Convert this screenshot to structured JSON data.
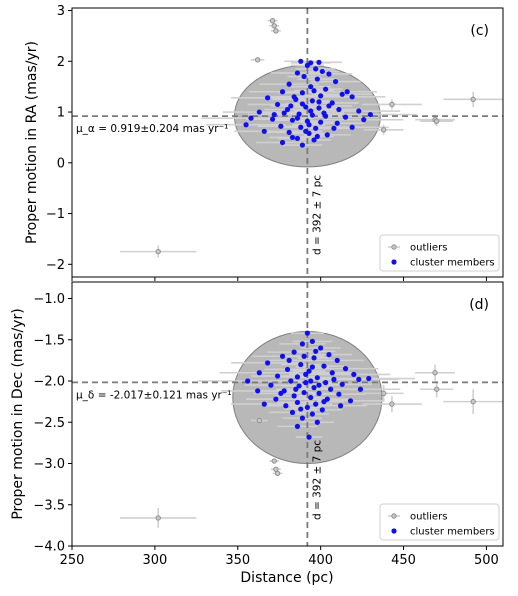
{
  "figure": {
    "xlabel": "Distance (pc)",
    "x_ticks": [
      250,
      300,
      350,
      400,
      450,
      500
    ],
    "xlim": [
      250,
      510
    ]
  },
  "legend": {
    "outliers_label": "outliers",
    "members_label": "cluster members"
  },
  "colors": {
    "members": "#1010ee",
    "outliers": "#909090",
    "ellipse": "#9a9a9a",
    "errorbar": "#d0d0d0",
    "dashed": "#7a7a7a"
  },
  "chart_data": [
    {
      "type": "scatter",
      "panel_label": "(c)",
      "ylabel": "Proper motion in RA (mas/yr)",
      "ylim": [
        -2.25,
        3.05
      ],
      "y_ticks": [
        -2,
        -1,
        0,
        1,
        2,
        3
      ],
      "mean_text": "μ_α = 0.919±0.204 mas yr⁻¹",
      "mean_value": 0.919,
      "distance_text": "d = 392 ± 7 pc",
      "distance_value": 392,
      "ellipse": {
        "cx": 392,
        "cy": 0.919,
        "rx": 44,
        "ry": 1.0
      },
      "outliers": [
        {
          "x": 302,
          "y": -1.75,
          "xerr": 23,
          "yerr": 0.12
        },
        {
          "x": 362,
          "y": 2.03,
          "xerr": 4,
          "yerr": 0
        },
        {
          "x": 371,
          "y": 2.8,
          "xerr": 3,
          "yerr": 0
        },
        {
          "x": 372,
          "y": 2.7,
          "xerr": 3,
          "yerr": 0
        },
        {
          "x": 373,
          "y": 2.6,
          "xerr": 3,
          "yerr": 0
        },
        {
          "x": 443,
          "y": 1.15,
          "xerr": 18,
          "yerr": 0.1
        },
        {
          "x": 469,
          "y": 0.85,
          "xerr": 12,
          "yerr": 0.1
        },
        {
          "x": 470,
          "y": 0.82,
          "xerr": 10,
          "yerr": 0.1
        },
        {
          "x": 492,
          "y": 1.25,
          "xerr": 18,
          "yerr": 0.15
        },
        {
          "x": 438,
          "y": 0.65,
          "xerr": 12,
          "yerr": 0.1
        }
      ],
      "members": [
        {
          "x": 388,
          "y": 2.0,
          "xerr": 10
        },
        {
          "x": 394,
          "y": 1.97,
          "xerr": 12
        },
        {
          "x": 399,
          "y": 1.98,
          "xerr": 14
        },
        {
          "x": 392,
          "y": 1.92,
          "xerr": 10
        },
        {
          "x": 397,
          "y": 1.85,
          "xerr": 12
        },
        {
          "x": 401,
          "y": 1.8,
          "xerr": 10
        },
        {
          "x": 386,
          "y": 1.77,
          "xerr": 16
        },
        {
          "x": 405,
          "y": 1.75,
          "xerr": 14
        },
        {
          "x": 390,
          "y": 1.7,
          "xerr": 10
        },
        {
          "x": 398,
          "y": 1.65,
          "xerr": 12
        },
        {
          "x": 409,
          "y": 1.6,
          "xerr": 15
        },
        {
          "x": 381,
          "y": 1.55,
          "xerr": 18
        },
        {
          "x": 394,
          "y": 1.5,
          "xerr": 12
        },
        {
          "x": 403,
          "y": 1.45,
          "xerr": 10
        },
        {
          "x": 377,
          "y": 1.4,
          "xerr": 20
        },
        {
          "x": 389,
          "y": 1.38,
          "xerr": 14
        },
        {
          "x": 400,
          "y": 1.32,
          "xerr": 12
        },
        {
          "x": 413,
          "y": 1.35,
          "xerr": 18
        },
        {
          "x": 419,
          "y": 1.3,
          "xerr": 20
        },
        {
          "x": 368,
          "y": 1.28,
          "xerr": 22
        },
        {
          "x": 385,
          "y": 1.25,
          "xerr": 14
        },
        {
          "x": 395,
          "y": 1.22,
          "xerr": 10
        },
        {
          "x": 407,
          "y": 1.18,
          "xerr": 16
        },
        {
          "x": 374,
          "y": 1.15,
          "xerr": 18
        },
        {
          "x": 382,
          "y": 1.12,
          "xerr": 12
        },
        {
          "x": 391,
          "y": 1.1,
          "xerr": 10
        },
        {
          "x": 399,
          "y": 1.08,
          "xerr": 12
        },
        {
          "x": 411,
          "y": 1.05,
          "xerr": 14
        },
        {
          "x": 423,
          "y": 1.02,
          "xerr": 25
        },
        {
          "x": 363,
          "y": 1.0,
          "xerr": 22
        },
        {
          "x": 378,
          "y": 0.98,
          "xerr": 14
        },
        {
          "x": 387,
          "y": 0.96,
          "xerr": 10
        },
        {
          "x": 395,
          "y": 0.94,
          "xerr": 12
        },
        {
          "x": 403,
          "y": 0.92,
          "xerr": 12
        },
        {
          "x": 415,
          "y": 0.9,
          "xerr": 20
        },
        {
          "x": 430,
          "y": 0.95,
          "xerr": 28
        },
        {
          "x": 358,
          "y": 0.88,
          "xerr": 30
        },
        {
          "x": 371,
          "y": 0.86,
          "xerr": 16
        },
        {
          "x": 383,
          "y": 0.84,
          "xerr": 12
        },
        {
          "x": 392,
          "y": 0.82,
          "xerr": 10
        },
        {
          "x": 400,
          "y": 0.8,
          "xerr": 12
        },
        {
          "x": 410,
          "y": 0.78,
          "xerr": 16
        },
        {
          "x": 355,
          "y": 0.75,
          "xerr": 24
        },
        {
          "x": 376,
          "y": 0.72,
          "xerr": 14
        },
        {
          "x": 388,
          "y": 0.7,
          "xerr": 12
        },
        {
          "x": 397,
          "y": 0.68,
          "xerr": 10
        },
        {
          "x": 419,
          "y": 0.7,
          "xerr": 22
        },
        {
          "x": 366,
          "y": 0.62,
          "xerr": 18
        },
        {
          "x": 381,
          "y": 0.6,
          "xerr": 14
        },
        {
          "x": 393,
          "y": 0.58,
          "xerr": 10
        },
        {
          "x": 404,
          "y": 0.55,
          "xerr": 14
        },
        {
          "x": 386,
          "y": 0.48,
          "xerr": 12
        },
        {
          "x": 396,
          "y": 0.45,
          "xerr": 10
        },
        {
          "x": 377,
          "y": 0.4,
          "xerr": 16
        },
        {
          "x": 389,
          "y": 0.35,
          "xerr": 12
        },
        {
          "x": 383,
          "y": 0.5,
          "xerr": 14
        },
        {
          "x": 391,
          "y": 0.62,
          "xerr": 10
        },
        {
          "x": 399,
          "y": 1.2,
          "xerr": 10
        },
        {
          "x": 396,
          "y": 1.42,
          "xerr": 12
        },
        {
          "x": 405,
          "y": 1.12,
          "xerr": 14
        },
        {
          "x": 380,
          "y": 1.05,
          "xerr": 14
        },
        {
          "x": 386,
          "y": 0.88,
          "xerr": 10
        },
        {
          "x": 402,
          "y": 0.98,
          "xerr": 12
        },
        {
          "x": 394,
          "y": 1.02,
          "xerr": 10
        },
        {
          "x": 389,
          "y": 1.16,
          "xerr": 10
        },
        {
          "x": 393,
          "y": 0.75,
          "xerr": 10
        },
        {
          "x": 408,
          "y": 0.68,
          "xerr": 12
        },
        {
          "x": 372,
          "y": 0.95,
          "xerr": 16
        },
        {
          "x": 416,
          "y": 1.4,
          "xerr": 18
        },
        {
          "x": 426,
          "y": 0.85,
          "xerr": 24
        },
        {
          "x": 384,
          "y": 1.3,
          "xerr": 14
        },
        {
          "x": 398,
          "y": 0.52,
          "xerr": 10
        }
      ]
    },
    {
      "type": "scatter",
      "panel_label": "(d)",
      "ylabel": "Proper motion in Dec (mas/yr)",
      "ylim": [
        -4.0,
        -0.8
      ],
      "y_ticks": [
        -4.0,
        -3.5,
        -3.0,
        -2.5,
        -2.0,
        -1.5,
        -1.0
      ],
      "mean_text": "μ_δ = -2.017±0.121 mas yr⁻¹",
      "mean_value": -2.017,
      "distance_text": "d = 392 ± 7 pc",
      "distance_value": 392,
      "ellipse": {
        "cx": 392,
        "cy": -2.2,
        "rx": 45,
        "ry": 0.8
      },
      "outliers": [
        {
          "x": 302,
          "y": -3.66,
          "xerr": 23,
          "yerr": 0.12
        },
        {
          "x": 363,
          "y": -2.48,
          "xerr": 5,
          "yerr": 0
        },
        {
          "x": 372,
          "y": -2.97,
          "xerr": 3,
          "yerr": 0
        },
        {
          "x": 373,
          "y": -3.07,
          "xerr": 3,
          "yerr": 0
        },
        {
          "x": 374,
          "y": -3.12,
          "xerr": 3,
          "yerr": 0
        },
        {
          "x": 443,
          "y": -2.28,
          "xerr": 18,
          "yerr": 0.1
        },
        {
          "x": 469,
          "y": -1.9,
          "xerr": 12,
          "yerr": 0.1
        },
        {
          "x": 470,
          "y": -2.1,
          "xerr": 10,
          "yerr": 0.1
        },
        {
          "x": 492,
          "y": -2.25,
          "xerr": 18,
          "yerr": 0.15
        },
        {
          "x": 438,
          "y": -2.15,
          "xerr": 12,
          "yerr": 0.1
        }
      ],
      "members": [
        {
          "x": 392,
          "y": -1.42,
          "xerr": 10
        },
        {
          "x": 395,
          "y": -1.52,
          "xerr": 12
        },
        {
          "x": 389,
          "y": -1.55,
          "xerr": 14
        },
        {
          "x": 400,
          "y": -1.6,
          "xerr": 12
        },
        {
          "x": 384,
          "y": -1.65,
          "xerr": 16
        },
        {
          "x": 405,
          "y": -1.68,
          "xerr": 14
        },
        {
          "x": 377,
          "y": -1.7,
          "xerr": 18
        },
        {
          "x": 396,
          "y": -1.72,
          "xerr": 10
        },
        {
          "x": 410,
          "y": -1.75,
          "xerr": 16
        },
        {
          "x": 368,
          "y": -1.78,
          "xerr": 22
        },
        {
          "x": 388,
          "y": -1.8,
          "xerr": 12
        },
        {
          "x": 402,
          "y": -1.82,
          "xerr": 12
        },
        {
          "x": 415,
          "y": -1.85,
          "xerr": 20
        },
        {
          "x": 380,
          "y": -1.86,
          "xerr": 14
        },
        {
          "x": 393,
          "y": -1.88,
          "xerr": 10
        },
        {
          "x": 363,
          "y": -1.9,
          "xerr": 24
        },
        {
          "x": 420,
          "y": -1.92,
          "xerr": 22
        },
        {
          "x": 374,
          "y": -1.94,
          "xerr": 16
        },
        {
          "x": 386,
          "y": -1.95,
          "xerr": 12
        },
        {
          "x": 398,
          "y": -1.96,
          "xerr": 10
        },
        {
          "x": 408,
          "y": -1.98,
          "xerr": 14
        },
        {
          "x": 429,
          "y": -1.97,
          "xerr": 28
        },
        {
          "x": 356,
          "y": -2.0,
          "xerr": 30
        },
        {
          "x": 382,
          "y": -2.0,
          "xerr": 12
        },
        {
          "x": 391,
          "y": -2.02,
          "xerr": 10
        },
        {
          "x": 403,
          "y": -2.02,
          "xerr": 12
        },
        {
          "x": 413,
          "y": -2.04,
          "xerr": 18
        },
        {
          "x": 370,
          "y": -2.05,
          "xerr": 16
        },
        {
          "x": 387,
          "y": -2.06,
          "xerr": 10
        },
        {
          "x": 396,
          "y": -2.08,
          "xerr": 10
        },
        {
          "x": 406,
          "y": -2.1,
          "xerr": 14
        },
        {
          "x": 424,
          "y": -2.1,
          "xerr": 24
        },
        {
          "x": 362,
          "y": -2.12,
          "xerr": 22
        },
        {
          "x": 378,
          "y": -2.12,
          "xerr": 14
        },
        {
          "x": 390,
          "y": -2.14,
          "xerr": 10
        },
        {
          "x": 399,
          "y": -2.15,
          "xerr": 12
        },
        {
          "x": 411,
          "y": -2.16,
          "xerr": 16
        },
        {
          "x": 384,
          "y": -2.18,
          "xerr": 12
        },
        {
          "x": 394,
          "y": -2.2,
          "xerr": 10
        },
        {
          "x": 373,
          "y": -2.22,
          "xerr": 18
        },
        {
          "x": 404,
          "y": -2.22,
          "xerr": 14
        },
        {
          "x": 418,
          "y": -2.24,
          "xerr": 20
        },
        {
          "x": 386,
          "y": -2.26,
          "xerr": 12
        },
        {
          "x": 397,
          "y": -2.28,
          "xerr": 10
        },
        {
          "x": 379,
          "y": -2.3,
          "xerr": 14
        },
        {
          "x": 392,
          "y": -2.32,
          "xerr": 10
        },
        {
          "x": 401,
          "y": -2.35,
          "xerr": 12
        },
        {
          "x": 383,
          "y": -2.38,
          "xerr": 14
        },
        {
          "x": 395,
          "y": -2.4,
          "xerr": 10
        },
        {
          "x": 389,
          "y": -2.45,
          "xerr": 12
        },
        {
          "x": 398,
          "y": -2.5,
          "xerr": 10
        },
        {
          "x": 386,
          "y": -2.55,
          "xerr": 12
        },
        {
          "x": 393,
          "y": -2.68,
          "xerr": 8
        },
        {
          "x": 391,
          "y": -1.92,
          "xerr": 10
        },
        {
          "x": 399,
          "y": -2.05,
          "xerr": 12
        },
        {
          "x": 385,
          "y": -2.1,
          "xerr": 12
        },
        {
          "x": 407,
          "y": -1.9,
          "xerr": 14
        },
        {
          "x": 376,
          "y": -2.15,
          "xerr": 16
        },
        {
          "x": 395,
          "y": -1.83,
          "xerr": 10
        },
        {
          "x": 402,
          "y": -2.25,
          "xerr": 12
        },
        {
          "x": 381,
          "y": -1.75,
          "xerr": 14
        },
        {
          "x": 412,
          "y": -2.3,
          "xerr": 16
        },
        {
          "x": 388,
          "y": -2.34,
          "xerr": 10
        },
        {
          "x": 397,
          "y": -1.64,
          "xerr": 12
        },
        {
          "x": 366,
          "y": -2.28,
          "xerr": 20
        },
        {
          "x": 423,
          "y": -1.98,
          "xerr": 24
        },
        {
          "x": 394,
          "y": -2.0,
          "xerr": 10
        },
        {
          "x": 390,
          "y": -1.7,
          "xerr": 12
        }
      ]
    }
  ]
}
